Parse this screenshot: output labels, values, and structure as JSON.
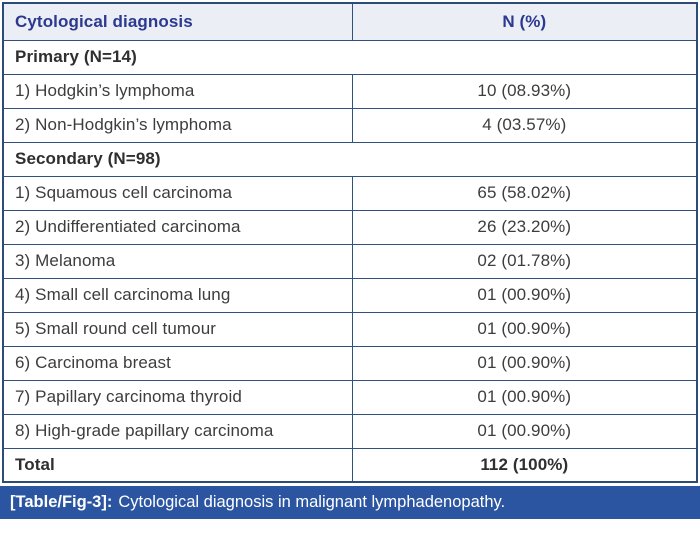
{
  "table": {
    "header": {
      "diagnosis_col": "Cytological diagnosis",
      "value_col": "N (%)"
    },
    "rows": [
      {
        "type": "section",
        "label": "Primary (N=14)"
      },
      {
        "type": "data",
        "label": "1) Hodgkin’s lymphoma",
        "value": "10 (08.93%)"
      },
      {
        "type": "data",
        "label": "2) Non-Hodgkin’s lymphoma",
        "value": "4 (03.57%)"
      },
      {
        "type": "section",
        "label": "Secondary (N=98)"
      },
      {
        "type": "data",
        "label": "1) Squamous cell carcinoma",
        "value": "65 (58.02%)"
      },
      {
        "type": "data",
        "label": "2) Undifferentiated carcinoma",
        "value": "26 (23.20%)"
      },
      {
        "type": "data",
        "label": "3) Melanoma",
        "value": "02 (01.78%)"
      },
      {
        "type": "data",
        "label": "4) Small cell carcinoma lung",
        "value": "01 (00.90%)"
      },
      {
        "type": "data",
        "label": "5) Small round cell tumour",
        "value": "01 (00.90%)"
      },
      {
        "type": "data",
        "label": "6) Carcinoma breast",
        "value": "01 (00.90%)"
      },
      {
        "type": "data",
        "label": "7) Papillary carcinoma thyroid",
        "value": "01 (00.90%)"
      },
      {
        "type": "data",
        "label": "8) High-grade papillary carcinoma",
        "value": "01 (00.90%)"
      },
      {
        "type": "total",
        "label": "Total",
        "value": "112 (100%)"
      }
    ]
  },
  "caption": {
    "tag": "[Table/Fig-3]:",
    "text": "Cytological diagnosis in malignant lymphadenopathy."
  },
  "colors": {
    "border": "#31507e",
    "outer_border": "#2e4b78",
    "header_bg": "#eceef6",
    "header_text": "#2b3990",
    "caption_bg": "#2b55a1",
    "caption_text": "#ffffff",
    "body_text": "#3d3d3d"
  }
}
